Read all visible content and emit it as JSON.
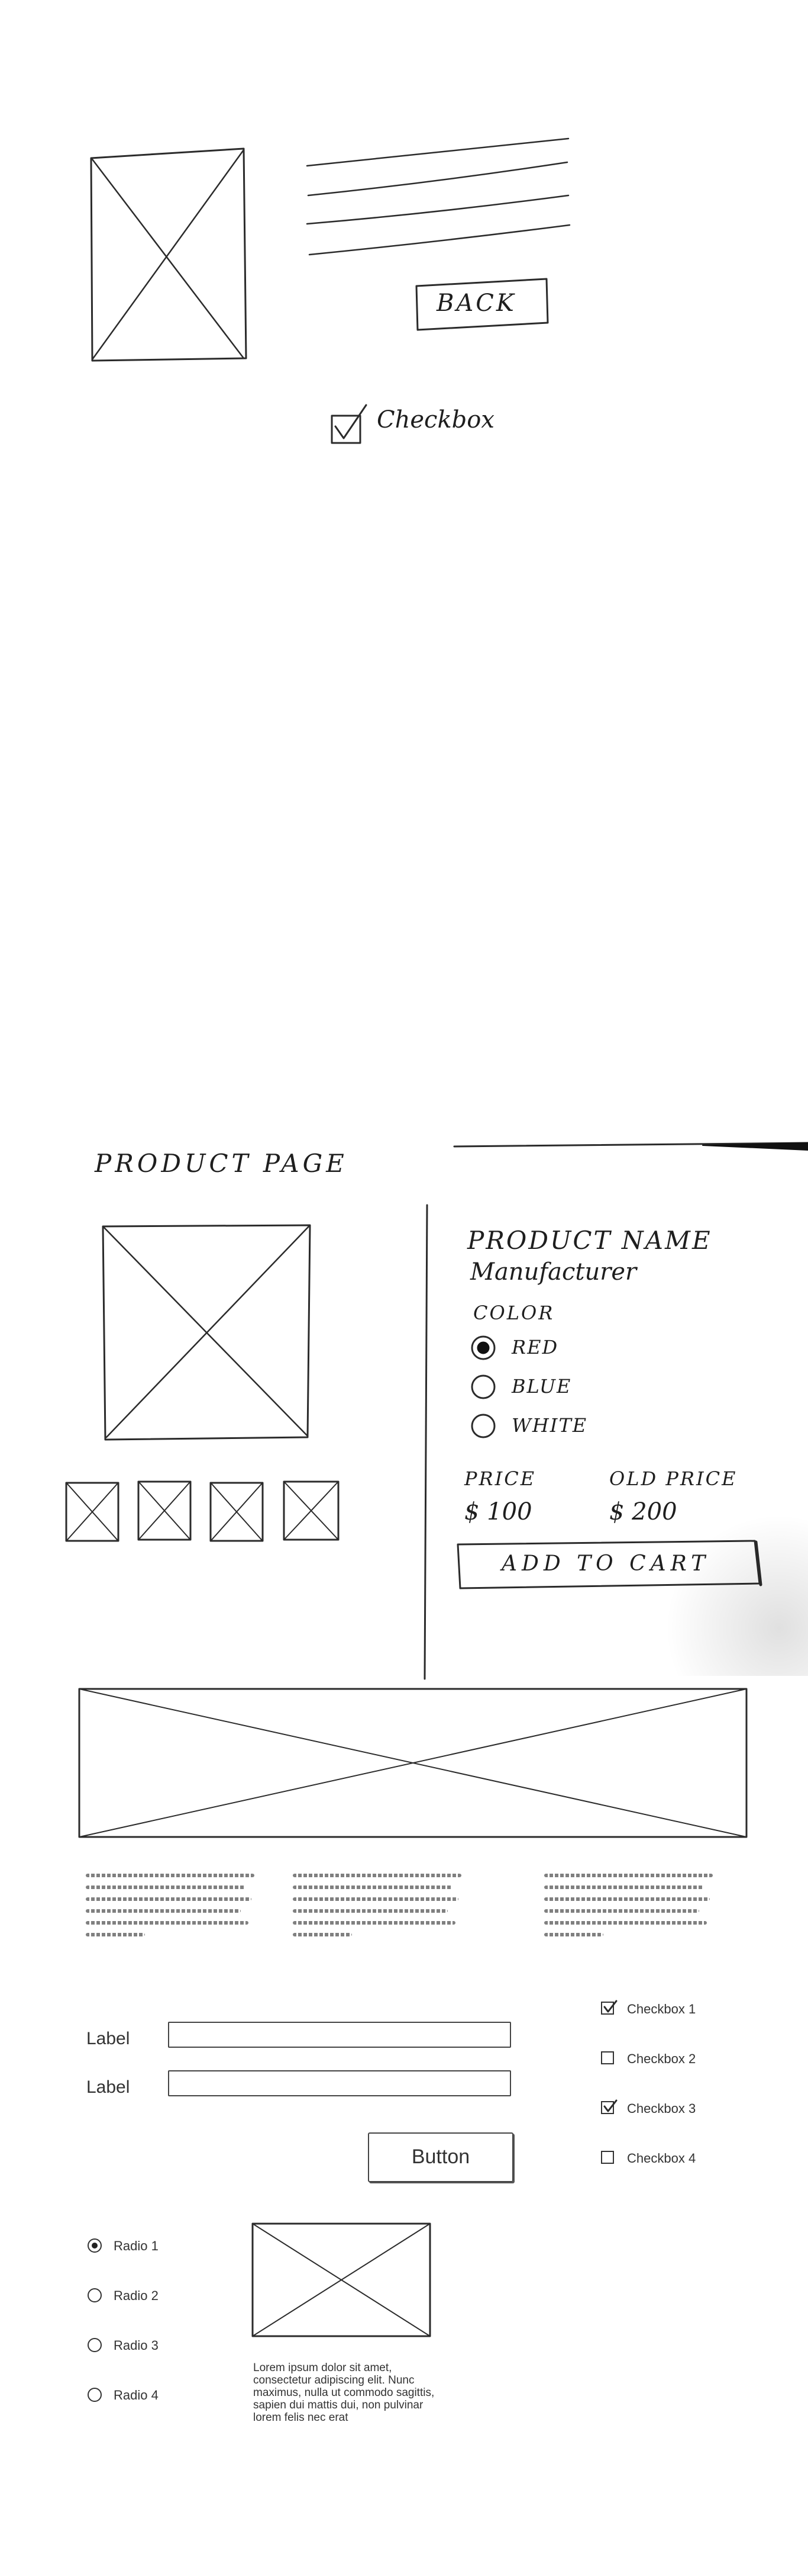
{
  "sketch1": {
    "back_button": "BACK",
    "checkbox_label": "Checkbox"
  },
  "product_page": {
    "title": "PRODUCT PAGE",
    "product_name": "PRODUCT NAME",
    "manufacturer": "Manufacturer",
    "color_label": "COLOR",
    "colors": [
      {
        "label": "RED",
        "selected": true
      },
      {
        "label": "BLUE",
        "selected": false
      },
      {
        "label": "WHITE",
        "selected": false
      }
    ],
    "price_label": "PRICE",
    "price_value": "$ 100",
    "old_price_label": "OLD PRICE",
    "old_price_value": "$ 200",
    "add_to_cart": "ADD TO CART"
  },
  "form": {
    "labels": [
      "Label",
      "Label"
    ],
    "button": "Button",
    "checkboxes": [
      {
        "label": "Checkbox 1",
        "checked": true
      },
      {
        "label": "Checkbox 2",
        "checked": false
      },
      {
        "label": "Checkbox 3",
        "checked": true
      },
      {
        "label": "Checkbox 4",
        "checked": false
      }
    ],
    "radios": [
      {
        "label": "Radio 1",
        "selected": true
      },
      {
        "label": "Radio 2",
        "selected": false
      },
      {
        "label": "Radio 3",
        "selected": false
      },
      {
        "label": "Radio 4",
        "selected": false
      }
    ],
    "lorem": "Lorem ipsum dolor sit amet, consectetur adipiscing elit. Nunc maximus, nulla ut commodo sagittis, sapien dui mattis dui, non pulvinar lorem felis nec erat"
  }
}
